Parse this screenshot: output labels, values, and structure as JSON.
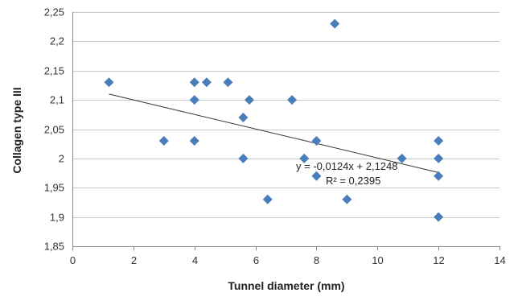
{
  "chart_data": {
    "type": "scatter",
    "title": "",
    "xlabel": "Tunnel diameter (mm)",
    "ylabel": "Collagen type III",
    "xlim": [
      0,
      14
    ],
    "ylim": [
      1.85,
      2.25
    ],
    "x_ticks": [
      0,
      2,
      4,
      6,
      8,
      10,
      12,
      14
    ],
    "y_ticks": [
      1.85,
      1.9,
      1.95,
      2,
      2.05,
      2.1,
      2.15,
      2.2,
      2.25
    ],
    "x_tick_labels": [
      "0",
      "2",
      "4",
      "6",
      "8",
      "10",
      "12",
      "14"
    ],
    "y_tick_labels": [
      "1,85",
      "1,9",
      "1,95",
      "2",
      "2,05",
      "2,1",
      "2,15",
      "2,2",
      "2,25"
    ],
    "grid": "horizontal",
    "legend": "none",
    "marker_color": "#4a7ebb",
    "series": [
      {
        "marker": "diamond",
        "points": [
          {
            "x": 1.2,
            "y": 2.13
          },
          {
            "x": 3.0,
            "y": 2.03
          },
          {
            "x": 4.0,
            "y": 2.13
          },
          {
            "x": 4.0,
            "y": 2.1
          },
          {
            "x": 4.0,
            "y": 2.03
          },
          {
            "x": 4.4,
            "y": 2.13
          },
          {
            "x": 5.1,
            "y": 2.13
          },
          {
            "x": 5.6,
            "y": 2.07
          },
          {
            "x": 5.6,
            "y": 2.0
          },
          {
            "x": 5.8,
            "y": 2.1
          },
          {
            "x": 6.4,
            "y": 1.93
          },
          {
            "x": 7.2,
            "y": 2.1
          },
          {
            "x": 7.6,
            "y": 2.0
          },
          {
            "x": 8.0,
            "y": 2.03
          },
          {
            "x": 8.0,
            "y": 1.97
          },
          {
            "x": 8.6,
            "y": 2.23
          },
          {
            "x": 9.0,
            "y": 1.93
          },
          {
            "x": 10.8,
            "y": 2.0
          },
          {
            "x": 12.0,
            "y": 2.03
          },
          {
            "x": 12.0,
            "y": 2.0
          },
          {
            "x": 12.0,
            "y": 1.97
          },
          {
            "x": 12.0,
            "y": 1.9
          }
        ]
      }
    ],
    "trendline": {
      "slope": -0.0124,
      "intercept": 2.1248,
      "x_range": [
        1.2,
        12
      ],
      "color": "#333333",
      "equation_label": "y = -0,0124x + 2,1248",
      "r2_label": "R² = 0,2395"
    }
  }
}
